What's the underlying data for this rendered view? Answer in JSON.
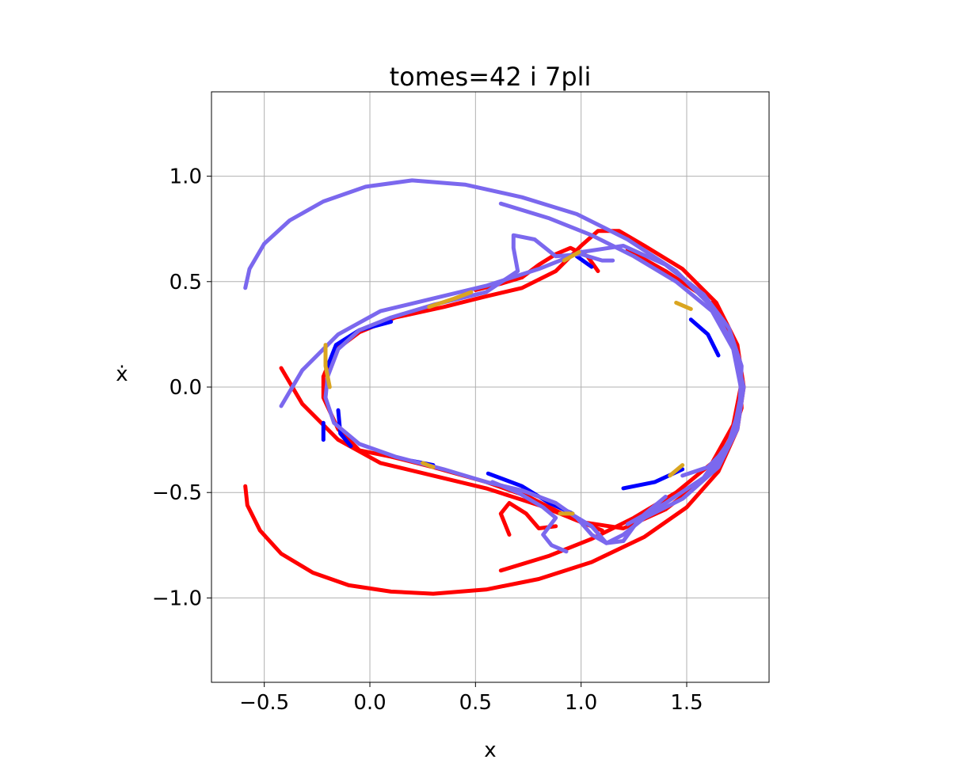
{
  "chart_data": {
    "type": "line",
    "title": "tomes=42 i 7pli",
    "xlabel": "x",
    "ylabel": "ẋ",
    "xlim": [
      -0.75,
      1.89
    ],
    "ylim": [
      -1.4,
      1.4
    ],
    "xticks": [
      -0.5,
      0.0,
      0.5,
      1.0,
      1.5
    ],
    "xtick_labels": [
      "−0.5",
      "0.0",
      "0.5",
      "1.0",
      "1.5"
    ],
    "yticks": [
      -1.0,
      -0.5,
      0.0,
      0.5,
      1.0
    ],
    "ytick_labels": [
      "−1.0",
      "−0.5",
      "0.0",
      "0.5",
      "1.0"
    ],
    "grid": true,
    "legend": "none",
    "series": [
      {
        "color": "#ff0000",
        "width": 5,
        "segments": [
          [
            [
              -0.59,
              -0.47
            ],
            [
              -0.58,
              -0.56
            ],
            [
              -0.52,
              -0.68
            ],
            [
              -0.42,
              -0.79
            ],
            [
              -0.27,
              -0.88
            ],
            [
              -0.1,
              -0.94
            ],
            [
              0.1,
              -0.97
            ],
            [
              0.3,
              -0.98
            ],
            [
              0.55,
              -0.96
            ],
            [
              0.8,
              -0.91
            ],
            [
              1.05,
              -0.83
            ],
            [
              1.3,
              -0.71
            ],
            [
              1.5,
              -0.57
            ],
            [
              1.65,
              -0.4
            ],
            [
              1.74,
              -0.2
            ],
            [
              1.77,
              0.0
            ],
            [
              1.74,
              0.2
            ],
            [
              1.64,
              0.4
            ],
            [
              1.48,
              0.56
            ],
            [
              1.3,
              0.67
            ],
            [
              1.18,
              0.74
            ],
            [
              1.08,
              0.74
            ],
            [
              1.0,
              0.67
            ],
            [
              0.88,
              0.55
            ],
            [
              0.72,
              0.47
            ],
            [
              0.55,
              0.43
            ],
            [
              0.35,
              0.38
            ],
            [
              0.12,
              0.33
            ],
            [
              -0.05,
              0.26
            ],
            [
              -0.17,
              0.17
            ],
            [
              -0.22,
              0.05
            ],
            [
              -0.22,
              -0.05
            ],
            [
              -0.15,
              -0.2
            ],
            [
              -0.05,
              -0.3
            ],
            [
              0.1,
              -0.33
            ],
            [
              0.3,
              -0.38
            ],
            [
              0.55,
              -0.45
            ],
            [
              0.75,
              -0.52
            ],
            [
              0.95,
              -0.62
            ],
            [
              1.1,
              -0.68
            ]
          ],
          [
            [
              -0.42,
              0.09
            ],
            [
              -0.32,
              -0.08
            ],
            [
              -0.15,
              -0.25
            ],
            [
              0.05,
              -0.36
            ],
            [
              0.3,
              -0.42
            ],
            [
              0.55,
              -0.48
            ],
            [
              0.8,
              -0.56
            ],
            [
              1.0,
              -0.64
            ],
            [
              1.2,
              -0.67
            ],
            [
              1.4,
              -0.58
            ],
            [
              1.58,
              -0.44
            ],
            [
              1.7,
              -0.28
            ],
            [
              1.76,
              -0.1
            ],
            [
              1.75,
              0.1
            ],
            [
              1.7,
              0.26
            ],
            [
              1.58,
              0.43
            ],
            [
              1.4,
              0.55
            ],
            [
              1.22,
              0.65
            ]
          ],
          [
            [
              0.62,
              -0.87
            ],
            [
              0.85,
              -0.8
            ],
            [
              1.05,
              -0.72
            ],
            [
              1.25,
              -0.62
            ],
            [
              1.45,
              -0.5
            ],
            [
              1.62,
              -0.36
            ],
            [
              1.72,
              -0.18
            ],
            [
              1.76,
              0.02
            ],
            [
              1.72,
              0.22
            ],
            [
              1.62,
              0.4
            ]
          ],
          [
            [
              0.66,
              -0.7
            ],
            [
              0.62,
              -0.6
            ],
            [
              0.66,
              -0.55
            ],
            [
              0.74,
              -0.6
            ],
            [
              0.8,
              -0.67
            ],
            [
              0.88,
              -0.66
            ]
          ],
          [
            [
              0.5,
              0.46
            ],
            [
              0.62,
              0.49
            ],
            [
              0.72,
              0.52
            ],
            [
              0.8,
              0.58
            ],
            [
              0.88,
              0.63
            ],
            [
              0.95,
              0.66
            ],
            [
              1.03,
              0.62
            ],
            [
              1.08,
              0.55
            ]
          ]
        ]
      },
      {
        "color": "#0000ff",
        "width": 5,
        "segments": [
          [
            [
              -0.2,
              0.1
            ],
            [
              -0.16,
              0.2
            ],
            [
              -0.05,
              0.27
            ],
            [
              0.1,
              0.31
            ]
          ],
          [
            [
              -0.15,
              -0.11
            ],
            [
              -0.14,
              -0.22
            ],
            [
              -0.09,
              -0.28
            ]
          ],
          [
            [
              -0.22,
              -0.17
            ],
            [
              -0.22,
              -0.25
            ]
          ],
          [
            [
              0.56,
              -0.41
            ],
            [
              0.72,
              -0.47
            ],
            [
              0.85,
              -0.55
            ],
            [
              0.96,
              -0.6
            ]
          ],
          [
            [
              1.2,
              -0.48
            ],
            [
              1.35,
              -0.45
            ],
            [
              1.48,
              -0.39
            ]
          ],
          [
            [
              1.52,
              0.32
            ],
            [
              1.6,
              0.25
            ],
            [
              1.65,
              0.15
            ]
          ],
          [
            [
              0.98,
              0.62
            ],
            [
              1.05,
              0.57
            ]
          ],
          [
            [
              0.2,
              -0.35
            ],
            [
              0.3,
              -0.37
            ]
          ]
        ]
      },
      {
        "color": "#7b68ee",
        "width": 5,
        "segments": [
          [
            [
              -0.59,
              0.47
            ],
            [
              -0.57,
              0.56
            ],
            [
              -0.5,
              0.68
            ],
            [
              -0.38,
              0.79
            ],
            [
              -0.22,
              0.88
            ],
            [
              -0.02,
              0.95
            ],
            [
              0.2,
              0.98
            ],
            [
              0.45,
              0.96
            ],
            [
              0.72,
              0.9
            ],
            [
              0.98,
              0.82
            ],
            [
              1.22,
              0.7
            ],
            [
              1.45,
              0.55
            ],
            [
              1.62,
              0.38
            ],
            [
              1.72,
              0.2
            ],
            [
              1.77,
              0.0
            ],
            [
              1.74,
              -0.2
            ],
            [
              1.65,
              -0.38
            ],
            [
              1.48,
              -0.53
            ],
            [
              1.3,
              -0.62
            ],
            [
              1.2,
              -0.7
            ],
            [
              1.12,
              -0.74
            ],
            [
              1.05,
              -0.7
            ],
            [
              0.98,
              -0.62
            ],
            [
              0.88,
              -0.55
            ],
            [
              0.72,
              -0.49
            ],
            [
              0.55,
              -0.45
            ],
            [
              0.35,
              -0.39
            ],
            [
              0.12,
              -0.33
            ],
            [
              -0.05,
              -0.27
            ],
            [
              -0.17,
              -0.17
            ],
            [
              -0.21,
              -0.05
            ],
            [
              -0.2,
              0.05
            ],
            [
              -0.15,
              0.18
            ],
            [
              -0.05,
              0.27
            ],
            [
              0.1,
              0.33
            ],
            [
              0.3,
              0.39
            ],
            [
              0.55,
              0.45
            ],
            [
              0.7,
              0.55
            ],
            [
              0.68,
              0.66
            ],
            [
              0.68,
              0.72
            ],
            [
              0.78,
              0.7
            ],
            [
              0.88,
              0.62
            ],
            [
              1.0,
              0.63
            ],
            [
              1.1,
              0.6
            ],
            [
              1.15,
              0.6
            ]
          ],
          [
            [
              -0.42,
              -0.09
            ],
            [
              -0.32,
              0.08
            ],
            [
              -0.15,
              0.25
            ],
            [
              0.05,
              0.36
            ],
            [
              0.3,
              0.42
            ],
            [
              0.55,
              0.48
            ],
            [
              0.8,
              0.56
            ],
            [
              1.0,
              0.64
            ],
            [
              1.2,
              0.67
            ],
            [
              1.4,
              0.58
            ],
            [
              1.58,
              0.44
            ],
            [
              1.7,
              0.28
            ],
            [
              1.76,
              0.1
            ],
            [
              1.75,
              -0.1
            ],
            [
              1.7,
              -0.26
            ],
            [
              1.58,
              -0.43
            ],
            [
              1.4,
              -0.55
            ],
            [
              1.22,
              -0.65
            ]
          ],
          [
            [
              0.62,
              0.87
            ],
            [
              0.85,
              0.8
            ],
            [
              1.05,
              0.72
            ],
            [
              1.25,
              0.62
            ],
            [
              1.45,
              0.5
            ],
            [
              1.62,
              0.36
            ],
            [
              1.72,
              0.18
            ],
            [
              1.76,
              -0.02
            ],
            [
              1.72,
              -0.22
            ],
            [
              1.62,
              -0.4
            ]
          ],
          [
            [
              0.58,
              -0.45
            ],
            [
              0.7,
              -0.5
            ],
            [
              0.82,
              -0.57
            ],
            [
              0.88,
              -0.62
            ],
            [
              0.82,
              -0.7
            ],
            [
              0.86,
              -0.75
            ],
            [
              0.93,
              -0.78
            ]
          ],
          [
            [
              0.95,
              -0.6
            ],
            [
              1.05,
              -0.66
            ],
            [
              1.12,
              -0.74
            ],
            [
              1.2,
              -0.73
            ],
            [
              1.28,
              -0.62
            ],
            [
              1.4,
              -0.52
            ]
          ],
          [
            [
              1.48,
              -0.42
            ],
            [
              1.6,
              -0.38
            ],
            [
              1.68,
              -0.3
            ]
          ]
        ]
      },
      {
        "color": "#daa520",
        "width": 5,
        "segments": [
          [
            [
              -0.19,
              0.0
            ],
            [
              -0.21,
              0.1
            ],
            [
              -0.21,
              0.2
            ]
          ],
          [
            [
              0.28,
              0.38
            ],
            [
              0.4,
              0.42
            ],
            [
              0.48,
              0.45
            ]
          ],
          [
            [
              0.92,
              0.6
            ],
            [
              0.99,
              0.64
            ]
          ],
          [
            [
              1.45,
              0.4
            ],
            [
              1.52,
              0.37
            ]
          ],
          [
            [
              1.42,
              -0.42
            ],
            [
              1.48,
              -0.37
            ]
          ],
          [
            [
              0.9,
              -0.6
            ],
            [
              0.96,
              -0.6
            ]
          ],
          [
            [
              0.25,
              -0.36
            ],
            [
              0.3,
              -0.38
            ]
          ]
        ]
      }
    ]
  }
}
